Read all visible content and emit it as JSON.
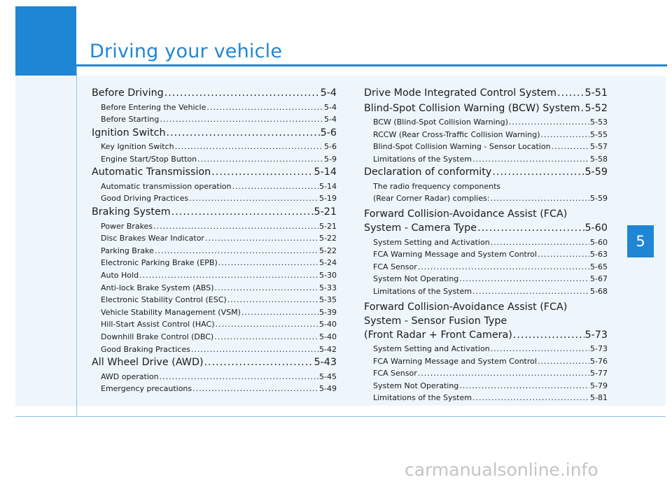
{
  "chapter": {
    "title": "Driving your vehicle",
    "number": "5"
  },
  "watermark": "carmanualsonline.info",
  "left_column": [
    {
      "title": "Before Driving",
      "page": "5-4",
      "items": [
        {
          "title": "Before Entering the Vehicle",
          "page": "5-4"
        },
        {
          "title": "Before Starting",
          "page": "5-4"
        }
      ]
    },
    {
      "title": "Ignition Switch",
      "page": "5-6",
      "items": [
        {
          "title": "Key Ignition Switch",
          "page": "5-6"
        },
        {
          "title": "Engine Start/Stop Button",
          "page": "5-9"
        }
      ]
    },
    {
      "title": "Automatic Transmission",
      "page": "5-14",
      "items": [
        {
          "title": "Automatic transmission operation",
          "page": "5-14"
        },
        {
          "title": "Good Driving Practices",
          "page": "5-19"
        }
      ]
    },
    {
      "title": "Braking System",
      "page": "5-21",
      "items": [
        {
          "title": "Power Brakes",
          "page": "5-21"
        },
        {
          "title": "Disc Brakes Wear Indicator",
          "page": "5-22"
        },
        {
          "title": "Parking Brake",
          "page": "5-22"
        },
        {
          "title": "Electronic Parking Brake (EPB)",
          "page": "5-24"
        },
        {
          "title": "Auto Hold",
          "page": "5-30"
        },
        {
          "title": "Anti-lock Brake System (ABS)",
          "page": "5-33"
        },
        {
          "title": "Electronic Stability Control (ESC)",
          "page": "5-35"
        },
        {
          "title": "Vehicle Stability Management (VSM)",
          "page": "5-39"
        },
        {
          "title": "Hill-Start Assist Control (HAC)",
          "page": "5-40"
        },
        {
          "title": "Downhill Brake Control (DBC)",
          "page": "5-40"
        },
        {
          "title": "Good Braking Practices",
          "page": "5-42"
        }
      ]
    },
    {
      "title": "All Wheel Drive (AWD)",
      "page": "5-43",
      "items": [
        {
          "title": "AWD operation",
          "page": "5-45"
        },
        {
          "title": "Emergency precautions",
          "page": "5-49"
        }
      ]
    }
  ],
  "right_column": {
    "drive_mode": {
      "title": "Drive Mode Integrated Control System",
      "page": "5-51"
    },
    "bcw": {
      "title": "Blind-Spot Collision Warning (BCW) System",
      "page": "5-52",
      "items": [
        {
          "title": "BCW (Blind-Spot Collision Warning)",
          "page": "5-53"
        },
        {
          "title": "RCCW (Rear Cross-Traffic Collision Warning)",
          "page": "5-55"
        },
        {
          "title": "Blind-Spot Collision Warning - Sensor Location",
          "page": "5-57"
        },
        {
          "title": "Limitations of the System",
          "page": "5-58"
        }
      ]
    },
    "conformity": {
      "title": "Declaration of conformity",
      "page": "5-59",
      "line1": "The radio frequency components",
      "item": {
        "title": "(Rear Corner Radar) complies:",
        "page": "5-59"
      }
    },
    "fca_camera": {
      "line1": "Forward Collision-Avoidance Assist (FCA)",
      "title": "System - Camera Type",
      "page": "5-60",
      "items": [
        {
          "title": "System Setting and Activation",
          "page": "5-60"
        },
        {
          "title": "FCA Warning Message and System Control",
          "page": "5-63"
        },
        {
          "title": "FCA Sensor",
          "page": "5-65"
        },
        {
          "title": "System Not Operating",
          "page": "5-67"
        },
        {
          "title": "Limitations of the System",
          "page": "5-68"
        }
      ]
    },
    "fca_fusion": {
      "line1": "Forward Collision-Avoidance Assist (FCA)",
      "line2": "System - Sensor Fusion Type",
      "title": "(Front Radar + Front Camera)",
      "page": "5-73",
      "items": [
        {
          "title": "System Setting and Activation",
          "page": "5-73"
        },
        {
          "title": "FCA Warning Message and System Control",
          "page": "5-76"
        },
        {
          "title": "FCA Sensor",
          "page": "5-77"
        },
        {
          "title": "System Not Operating",
          "page": "5-79"
        },
        {
          "title": "Limitations of the System",
          "page": "5-81"
        }
      ]
    }
  }
}
